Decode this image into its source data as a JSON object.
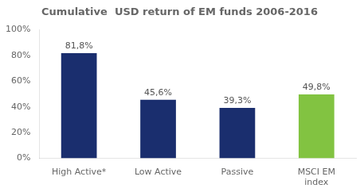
{
  "chart_data": {
    "type": "bar",
    "title": "Cumulative  USD return of EM funds 2006-2016",
    "categories": [
      "High Active*",
      "Low Active",
      "Passive",
      "MSCI EM\nindex"
    ],
    "values": [
      81.8,
      45.6,
      39.3,
      49.8
    ],
    "value_labels": [
      "81,8%",
      "45,6%",
      "39,3%",
      "49,8%"
    ],
    "data_labels": true,
    "colors": [
      "#1a2e6e",
      "#1a2e6e",
      "#1a2e6e",
      "#82c341"
    ],
    "ylim": [
      0,
      100
    ],
    "yticks": [
      {
        "value": 0,
        "label": "0%"
      },
      {
        "value": 20,
        "label": "20%"
      },
      {
        "value": 40,
        "label": "40%"
      },
      {
        "value": 60,
        "label": "60%"
      },
      {
        "value": 80,
        "label": "80%"
      },
      {
        "value": 100,
        "label": "100%"
      }
    ],
    "grid": false
  }
}
